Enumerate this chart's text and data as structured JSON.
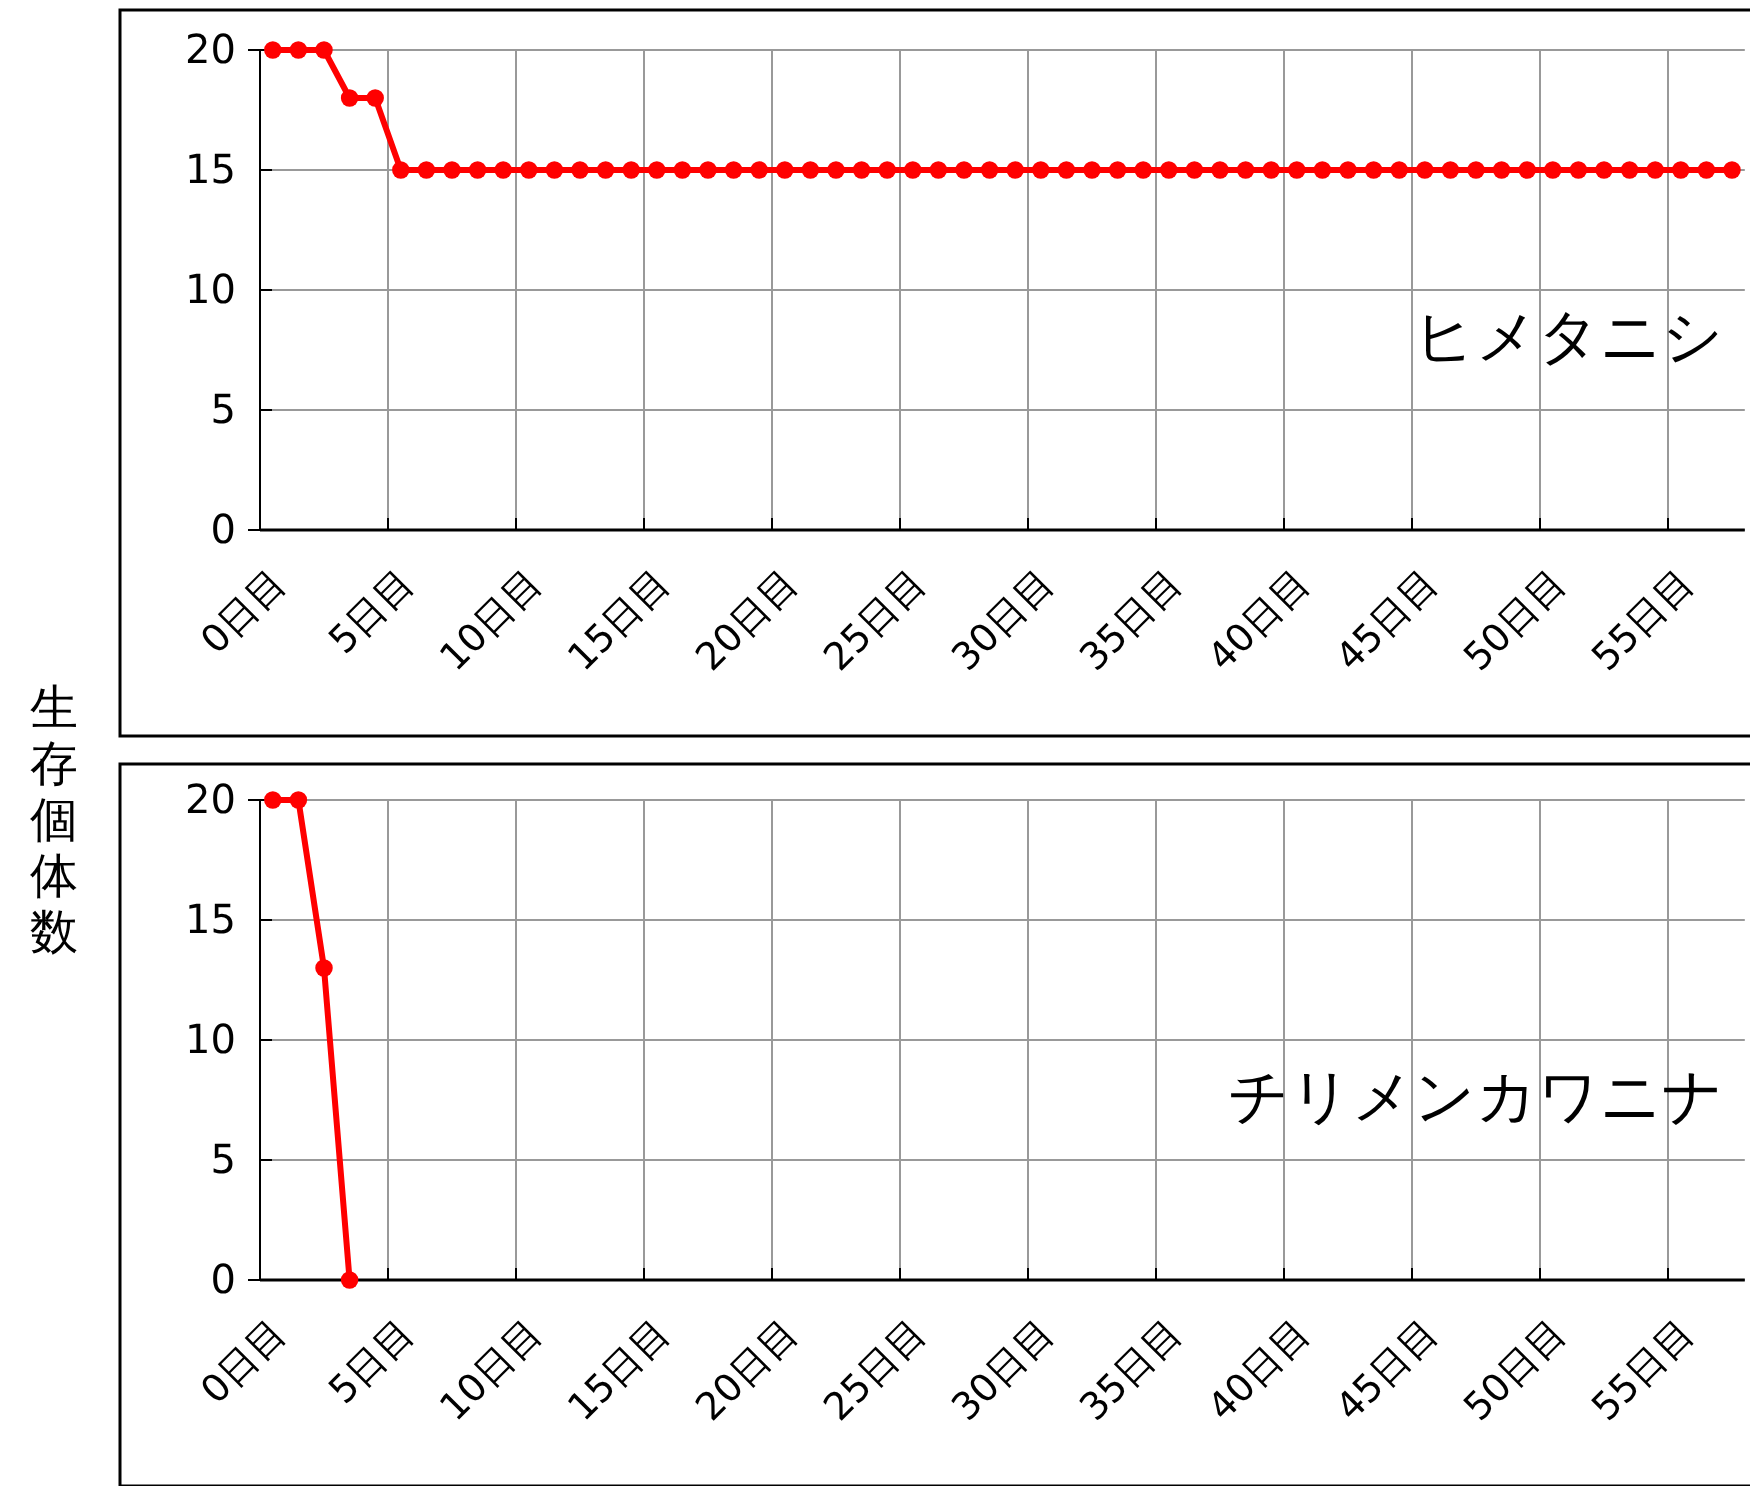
{
  "chart_data": [
    {
      "type": "line",
      "ylabel": "生存個体数",
      "categories": [
        "0日目",
        null,
        null,
        null,
        null,
        "5日目",
        null,
        null,
        null,
        null,
        "10日目",
        null,
        null,
        null,
        null,
        "15日目",
        null,
        null,
        null,
        null,
        "20日目",
        null,
        null,
        null,
        null,
        "25日目",
        null,
        null,
        null,
        null,
        "30日目",
        null,
        null,
        null,
        null,
        "35日目",
        null,
        null,
        null,
        null,
        "40日目",
        null,
        null,
        null,
        null,
        "45日目",
        null,
        null,
        null,
        null,
        "50日目",
        null,
        null,
        null,
        null,
        "55日目",
        null,
        null
      ],
      "series": [
        {
          "name": "ヒメタニシ",
          "color": "#ff0000",
          "values": [
            20,
            20,
            20,
            18,
            18,
            15,
            15,
            15,
            15,
            15,
            15,
            15,
            15,
            15,
            15,
            15,
            15,
            15,
            15,
            15,
            15,
            15,
            15,
            15,
            15,
            15,
            15,
            15,
            15,
            15,
            15,
            15,
            15,
            15,
            15,
            15,
            15,
            15,
            15,
            15,
            15,
            15,
            15,
            15,
            15,
            15,
            15,
            15,
            15,
            15,
            15,
            15,
            15,
            15,
            15,
            15,
            15,
            15
          ]
        }
      ],
      "ylim": [
        0,
        20
      ],
      "yticks": [
        0,
        5,
        10,
        15,
        20
      ],
      "grid": true,
      "marker": "circle",
      "line_style": "solid"
    },
    {
      "type": "line",
      "categories": [
        "0日目",
        null,
        null,
        null,
        null,
        "5日目",
        null,
        null,
        null,
        null,
        "10日目",
        null,
        null,
        null,
        null,
        "15日目",
        null,
        null,
        null,
        null,
        "20日目",
        null,
        null,
        null,
        null,
        "25日目",
        null,
        null,
        null,
        null,
        "30日目",
        null,
        null,
        null,
        null,
        "35日目",
        null,
        null,
        null,
        null,
        "40日目",
        null,
        null,
        null,
        null,
        "45日目",
        null,
        null,
        null,
        null,
        "50日目",
        null,
        null,
        null,
        null,
        "55日目",
        null,
        null
      ],
      "series": [
        {
          "name": "チリメンカワニナ",
          "color": "#ff0000",
          "values": [
            20,
            20,
            13,
            0,
            null,
            null,
            null,
            null,
            null,
            null,
            null,
            null,
            null,
            null,
            null,
            null,
            null,
            null,
            null,
            null,
            null,
            null,
            null,
            null,
            null,
            null,
            null,
            null,
            null,
            null,
            null,
            null,
            null,
            null,
            null,
            null,
            null,
            null,
            null,
            null,
            null,
            null,
            null,
            null,
            null,
            null,
            null,
            null,
            null,
            null,
            null,
            null,
            null,
            null,
            null,
            null,
            null,
            null
          ]
        }
      ],
      "ylim": [
        0,
        20
      ],
      "yticks": [
        0,
        5,
        10,
        15,
        20
      ],
      "grid": true,
      "marker": "circle",
      "line_style": "solid"
    }
  ]
}
